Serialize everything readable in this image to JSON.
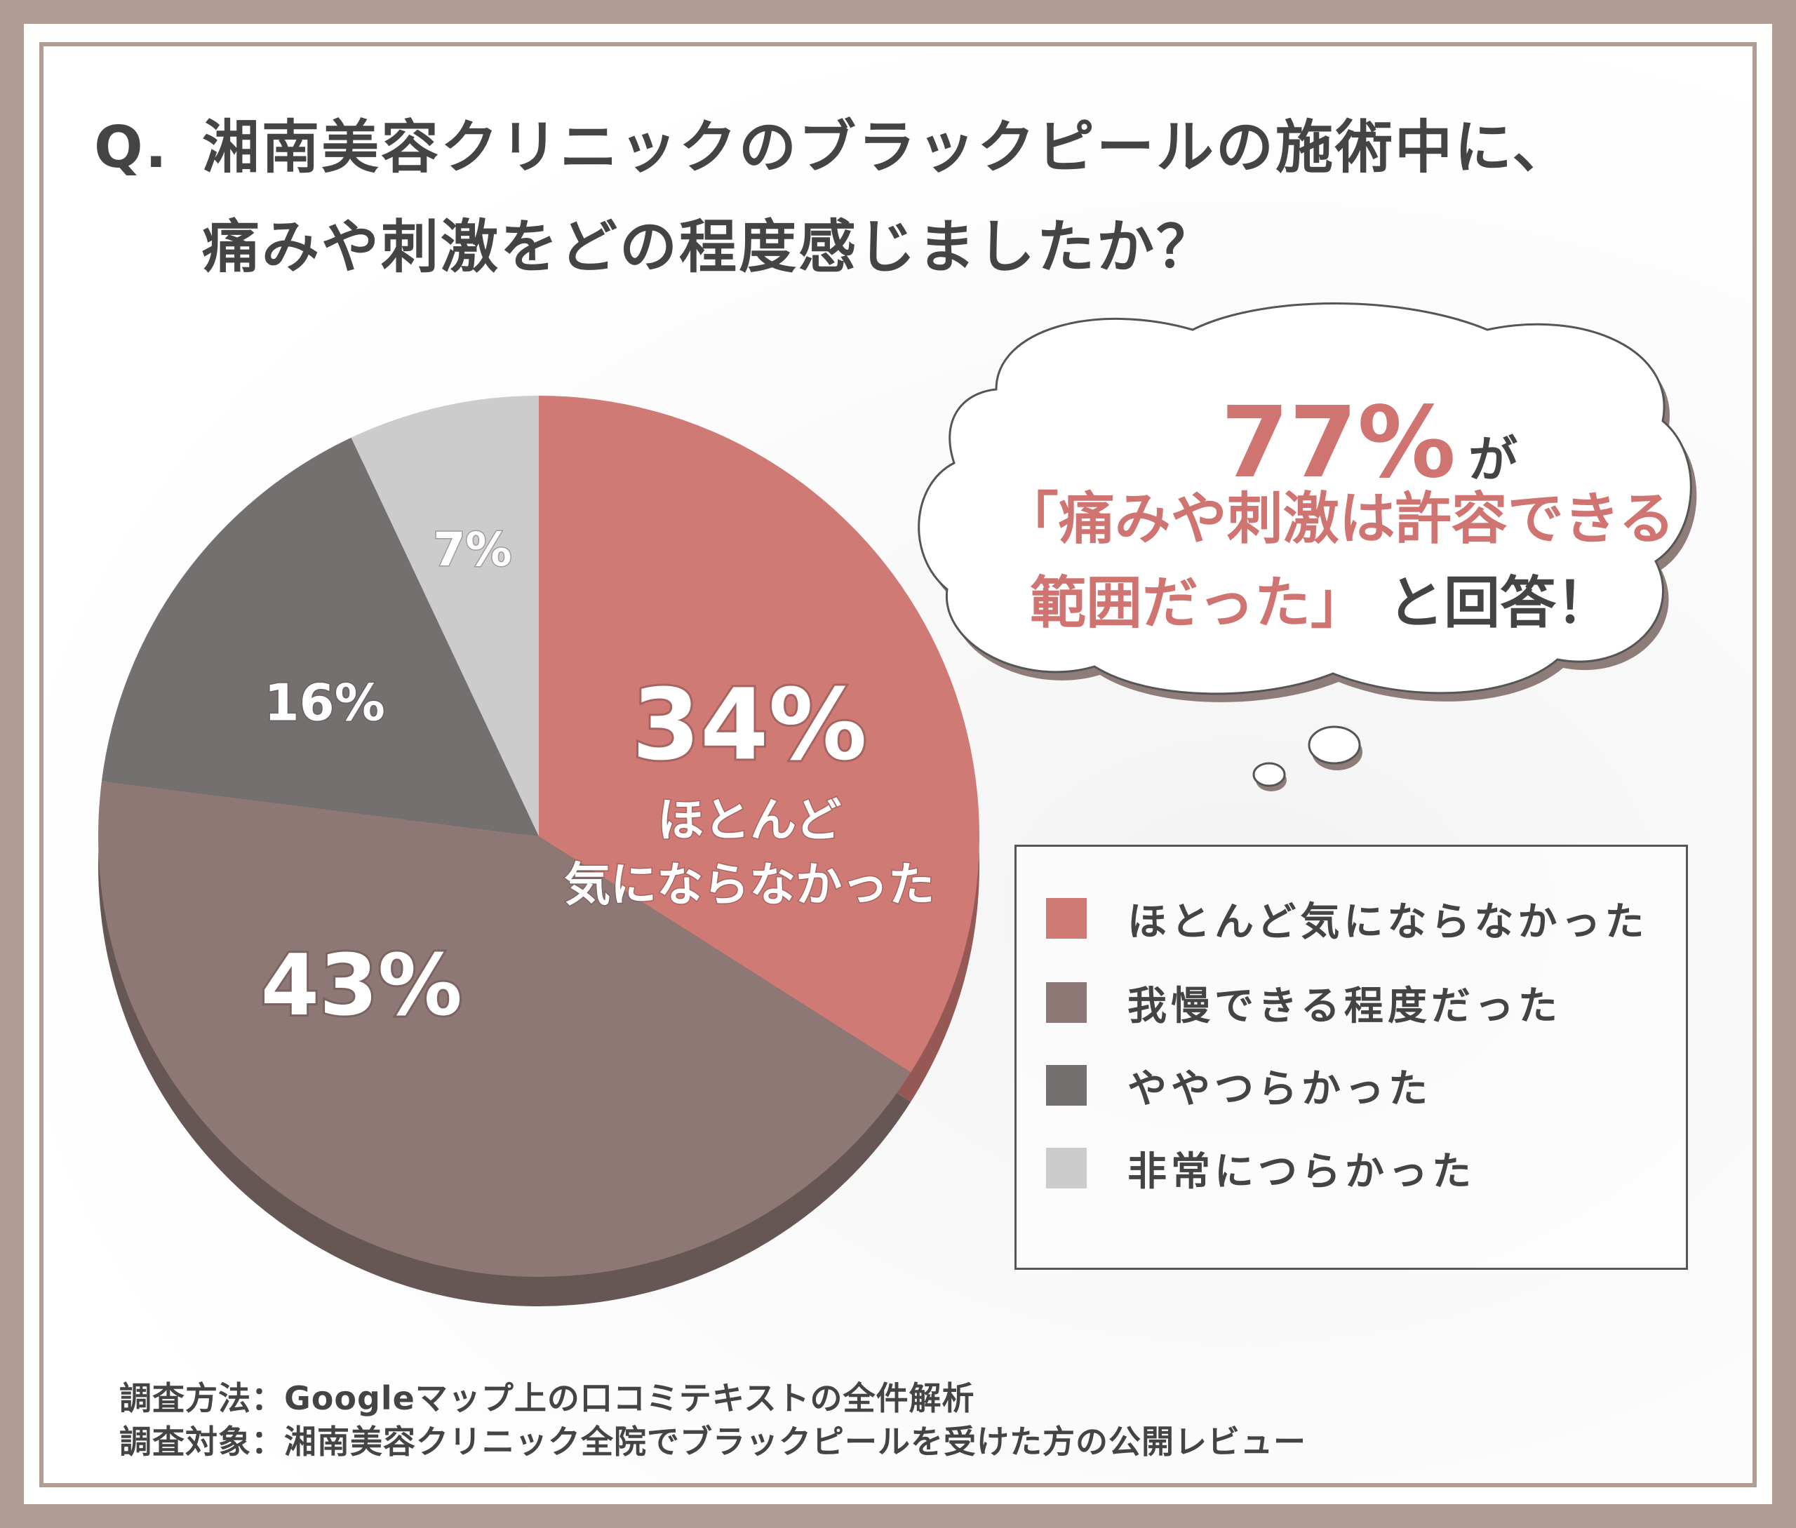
{
  "question": {
    "prefix": "Q.",
    "line1": "湘南美容クリニックのブラックピールの施術中に、",
    "line2": "痛みや刺激をどの程度感じましたか？"
  },
  "callout": {
    "percent": "77%",
    "ga": "が",
    "line2": "「痛みや刺激は許容できる",
    "line3": "範囲だった」",
    "answer": "と回答！"
  },
  "chart_data": {
    "type": "pie",
    "start_angle_deg": 0,
    "direction": "clockwise",
    "slices": [
      {
        "label": "ほとんど気にならなかった",
        "value": 34,
        "value_label": "34%",
        "inner_label": [
          "ほとんど",
          "気にならなかった"
        ],
        "color": "#cf7a74"
      },
      {
        "label": "我慢できる程度だった",
        "value": 43,
        "value_label": "43%",
        "color": "#8e7875"
      },
      {
        "label": "ややつらかった",
        "value": 16,
        "value_label": "16%",
        "color": "#757070"
      },
      {
        "label": "非常につらかった",
        "value": 7,
        "value_label": "7%",
        "color": "#cccccc"
      }
    ],
    "legend_position": "right"
  },
  "notes": {
    "method": "調査方法：Googleマップ上の口コミテキストの全件解析",
    "target": "調査対象：湘南美容クリニック全院でブラックピールを受けた方の公開レビュー"
  }
}
